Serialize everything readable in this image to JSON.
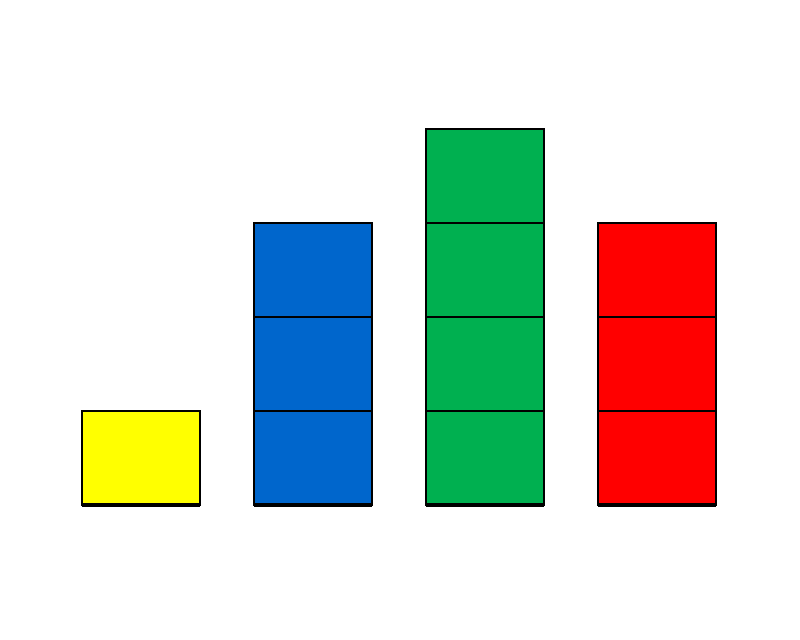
{
  "chart_data": {
    "type": "bar",
    "categories": [
      "",
      "",
      "",
      ""
    ],
    "values": [
      1,
      3,
      4,
      3
    ],
    "ylim": [
      0,
      4
    ],
    "grid": false,
    "bar_colors": [
      "#ffff00",
      "#0066cc",
      "#00b050",
      "#ff0000"
    ]
  }
}
